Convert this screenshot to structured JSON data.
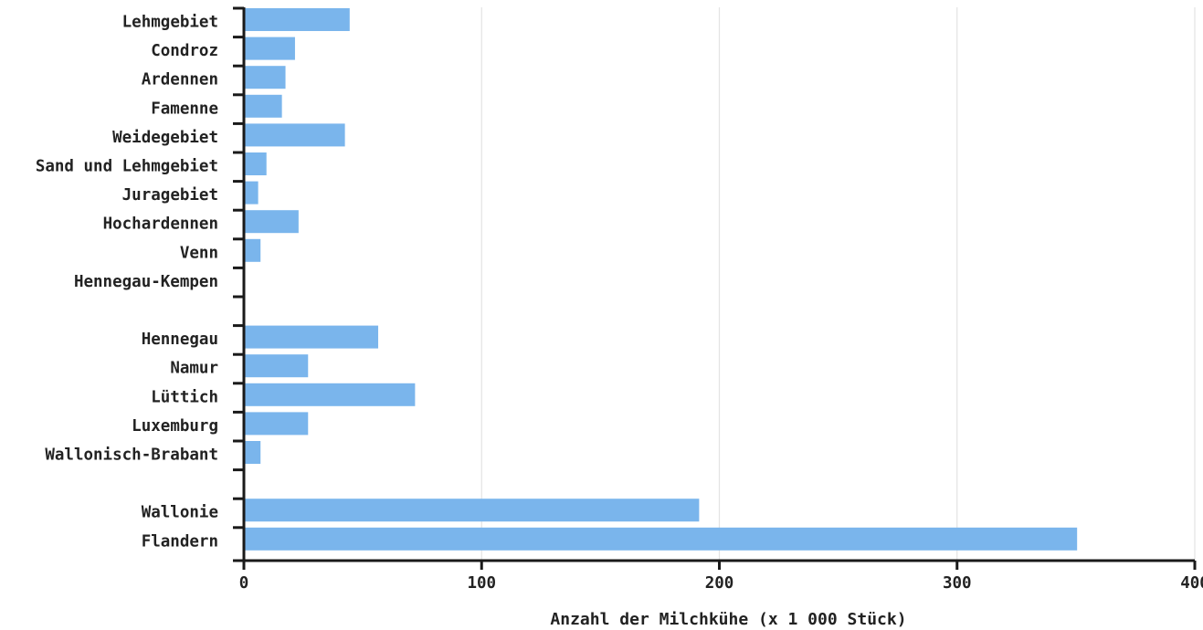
{
  "chart_data": {
    "type": "bar",
    "orientation": "horizontal",
    "xlabel": "Anzahl der Milchkühe (x 1 000 Stück)",
    "xlim": [
      0,
      400
    ],
    "xticks": [
      0,
      100,
      200,
      300,
      400
    ],
    "grid": true,
    "bar_color": "#7ab5ec",
    "categories": [
      "Lehmgebiet",
      "Condroz",
      "Ardennen",
      "Famenne",
      "Weidegebiet",
      "Sand und Lehmgebiet",
      "Juragebiet",
      "Hochardennen",
      "Venn",
      "Hennegau-Kempen",
      "",
      "Hennegau",
      "Namur",
      "Lüttich",
      "Luxemburg",
      "Wallonisch-Brabant",
      "",
      "Wallonie",
      "Flandern"
    ],
    "values": [
      44.5,
      21.5,
      17.5,
      16,
      42.5,
      9.5,
      6,
      23,
      7,
      0.3,
      null,
      56.5,
      27,
      72,
      27,
      7,
      null,
      191.5,
      350.5
    ]
  }
}
